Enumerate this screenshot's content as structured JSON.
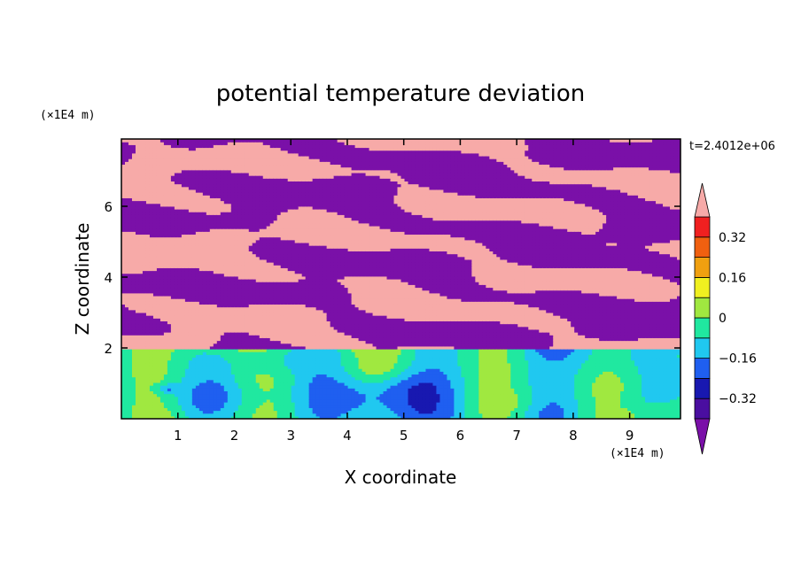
{
  "chart_data": {
    "type": "heatmap",
    "title": "potential temperature deviation",
    "xlabel": "X coordinate",
    "ylabel": "Z coordinate",
    "x_unit": "(×1E4 m)",
    "y_unit": "(×1E4 m)",
    "time_label": "t=2.4012e+06",
    "xlim": [
      0,
      9.9
    ],
    "ylim": [
      0,
      7.9
    ],
    "x_ticks": [
      1,
      2,
      3,
      4,
      5,
      6,
      7,
      8,
      9
    ],
    "y_ticks": [
      2,
      4,
      6
    ],
    "colorbar": {
      "levels": [
        -0.4,
        -0.32,
        -0.24,
        -0.16,
        -0.08,
        0,
        0.08,
        0.16,
        0.24,
        0.32,
        0.4
      ],
      "labels": [
        0.32,
        0.16,
        0,
        -0.16,
        -0.32
      ],
      "label_text": [
        "0.32",
        "0.16",
        "0",
        "−0.16",
        "−0.32"
      ],
      "over_color": "#f7aaa8",
      "under_color": "#7a10a8",
      "colors": [
        "#4a0ea0",
        "#1818b0",
        "#1f5ff0",
        "#20c8f0",
        "#20e8a0",
        "#a0e840",
        "#f0f020",
        "#f0a010",
        "#f06010",
        "#f02020"
      ]
    }
  }
}
